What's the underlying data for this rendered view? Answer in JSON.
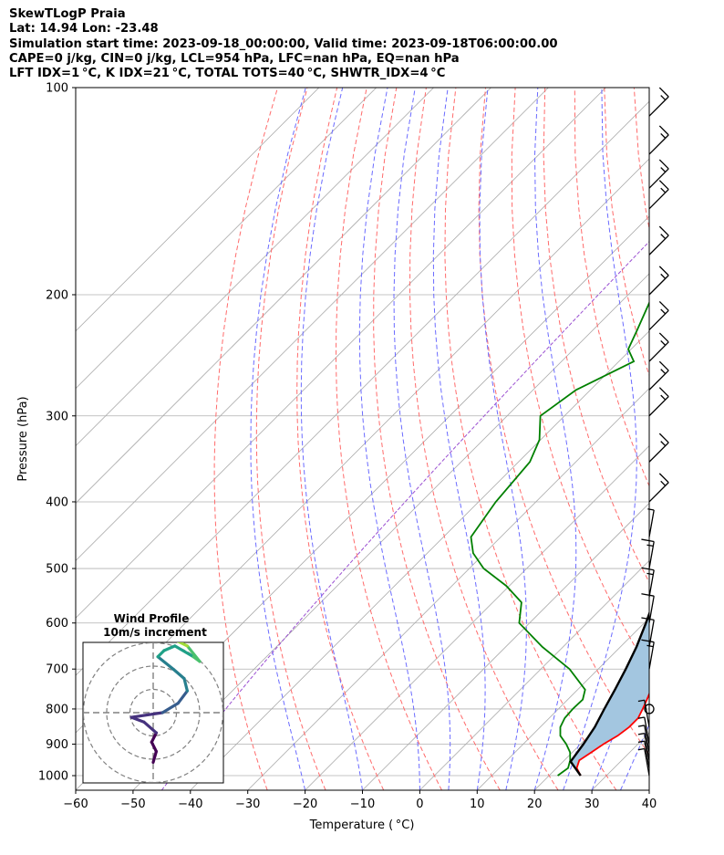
{
  "header": {
    "line1": "SkewTLogP Praia",
    "line2": "Lat: 14.94   Lon: -23.48",
    "line3": "Simulation start time: 2023-09-18_00:00:00, Valid time: 2023-09-18T06:00:00.00",
    "line4": "CAPE=0 j/kg, CIN=0 j/kg, LCL=954 hPa, LFC=nan hPa, EQ=nan hPa",
    "line5": "LFT IDX=1 °C, K IDX=21 °C, TOTAL TOTS=40 °C, SHWTR_IDX=4 °C"
  },
  "chart_data": {
    "type": "line",
    "subtype": "skew-t log-p",
    "xlabel": "Temperature ( °C)",
    "ylabel": "Pressure (hPa)",
    "xlim": [
      -60,
      40
    ],
    "ylim_hpa": [
      1050,
      100
    ],
    "y_scale": "log",
    "x_ticks": [
      "−60",
      "−50",
      "−40",
      "−30",
      "−20",
      "−10",
      "0",
      "10",
      "20",
      "30",
      "40"
    ],
    "y_ticks": [
      "100",
      "200",
      "300",
      "400",
      "500",
      "600",
      "700",
      "800",
      "900",
      "1000"
    ],
    "grid": true,
    "colors": {
      "temperature": "#ff0000",
      "dewpoint": "#008000",
      "parcel": "#000000",
      "shading": "#a3c6e0",
      "dry_adiabats": "#ff6b6b",
      "moist_adiabats": "#6b6bff",
      "mixing_ratio": "#9a4fd1",
      "isotherms": "#aaaaaa"
    },
    "series": [
      {
        "role": "temperature",
        "points": [
          [
            1000,
            25.5
          ],
          [
            975,
            23.5
          ],
          [
            950,
            22.6
          ],
          [
            925,
            23.3
          ],
          [
            900,
            24.0
          ],
          [
            875,
            25.0
          ],
          [
            850,
            25.5
          ],
          [
            825,
            25.5
          ],
          [
            800,
            24.7
          ],
          [
            775,
            23.8
          ],
          [
            750,
            22.8
          ],
          [
            700,
            20.4
          ],
          [
            650,
            18.6
          ],
          [
            600,
            16.2
          ],
          [
            550,
            13.4
          ],
          [
            500,
            10.5
          ],
          [
            450,
            6.9
          ],
          [
            400,
            2.7
          ],
          [
            350,
            -3.2
          ],
          [
            300,
            -9.6
          ],
          [
            275,
            -14.5
          ],
          [
            250,
            -17.4
          ],
          [
            225,
            -22.4
          ],
          [
            200,
            -28.7
          ],
          [
            175,
            -36.0
          ],
          [
            150,
            -44.0
          ],
          [
            140,
            -48.0
          ],
          [
            125,
            -54.3
          ],
          [
            110,
            -58.0
          ],
          [
            100,
            -60.5
          ]
        ]
      },
      {
        "role": "dewpoint",
        "points": [
          [
            1000,
            21.5
          ],
          [
            975,
            22.0
          ],
          [
            950,
            21.0
          ],
          [
            925,
            19.6
          ],
          [
            900,
            17.5
          ],
          [
            875,
            15.0
          ],
          [
            850,
            13.5
          ],
          [
            825,
            12.7
          ],
          [
            800,
            12.5
          ],
          [
            775,
            12.6
          ],
          [
            750,
            11.3
          ],
          [
            700,
            5.0
          ],
          [
            650,
            -3.6
          ],
          [
            600,
            -11.8
          ],
          [
            560,
            -15.0
          ],
          [
            530,
            -20.5
          ],
          [
            500,
            -27.5
          ],
          [
            475,
            -32.0
          ],
          [
            450,
            -35.2
          ],
          [
            400,
            -37.0
          ],
          [
            350,
            -38.0
          ],
          [
            325,
            -40.2
          ],
          [
            300,
            -44.2
          ],
          [
            275,
            -42.5
          ],
          [
            250,
            -37.4
          ],
          [
            240,
            -40.5
          ],
          [
            225,
            -42.3
          ],
          [
            200,
            -45.7
          ],
          [
            175,
            -52.0
          ],
          [
            150,
            -60.0
          ],
          [
            125,
            -66.0
          ],
          [
            110,
            -69.0
          ],
          [
            100,
            -71.0
          ]
        ]
      },
      {
        "role": "parcel",
        "points": [
          [
            1000,
            25.5
          ],
          [
            954,
            21.3
          ],
          [
            900,
            20.5
          ],
          [
            850,
            19.5
          ],
          [
            800,
            18.0
          ],
          [
            750,
            16.5
          ],
          [
            700,
            14.8
          ],
          [
            650,
            12.8
          ],
          [
            600,
            10.3
          ],
          [
            550,
            7.4
          ],
          [
            500,
            3.9
          ],
          [
            450,
            -0.2
          ],
          [
            400,
            -5.5
          ],
          [
            350,
            -12.2
          ],
          [
            300,
            -20.0
          ],
          [
            250,
            -30.0
          ],
          [
            200,
            -42.0
          ],
          [
            150,
            -57.0
          ],
          [
            125,
            -65.0
          ],
          [
            100,
            -74.0
          ]
        ]
      }
    ],
    "wind_barbs": [
      {
        "p": 1000,
        "speed_kt": 7
      },
      {
        "p": 975,
        "speed_kt": 7
      },
      {
        "p": 950,
        "speed_kt": 7
      },
      {
        "p": 925,
        "speed_kt": 7
      },
      {
        "p": 900,
        "speed_kt": 7
      },
      {
        "p": 850,
        "speed_kt": 7
      },
      {
        "p": 800,
        "speed_kt": 0
      },
      {
        "p": 700,
        "speed_kt": 17
      },
      {
        "p": 650,
        "speed_kt": 12
      },
      {
        "p": 600,
        "speed_kt": 12
      },
      {
        "p": 550,
        "speed_kt": 15
      },
      {
        "p": 500,
        "speed_kt": 15
      },
      {
        "p": 450,
        "speed_kt": 5
      },
      {
        "p": 400,
        "speed_kt": 15
      },
      {
        "p": 350,
        "speed_kt": 15
      },
      {
        "p": 300,
        "speed_kt": 15
      },
      {
        "p": 275,
        "speed_kt": 15
      },
      {
        "p": 250,
        "speed_kt": 15
      },
      {
        "p": 225,
        "speed_kt": 15
      },
      {
        "p": 200,
        "speed_kt": 15
      },
      {
        "p": 175,
        "speed_kt": 15
      },
      {
        "p": 150,
        "speed_kt": 15
      },
      {
        "p": 140,
        "speed_kt": 15
      },
      {
        "p": 125,
        "speed_kt": 15
      },
      {
        "p": 110,
        "speed_kt": 15
      }
    ],
    "hodograph": {
      "title": "Wind Profile",
      "subtitle": "10m/s increment",
      "rings": 3,
      "points": [
        [
          0.0,
          -3.2
        ],
        [
          0.2,
          -2.5
        ],
        [
          -0.1,
          -1.9
        ],
        [
          0.2,
          -1.3
        ],
        [
          -0.6,
          -0.6
        ],
        [
          -1.4,
          -0.3
        ],
        [
          0.6,
          0.0
        ],
        [
          1.6,
          0.6
        ],
        [
          2.2,
          1.4
        ],
        [
          2.0,
          2.2
        ],
        [
          1.3,
          2.8
        ],
        [
          0.3,
          3.6
        ],
        [
          0.7,
          4.0
        ],
        [
          1.4,
          4.3
        ],
        [
          2.6,
          3.6
        ],
        [
          3.0,
          3.3
        ],
        [
          2.2,
          4.3
        ],
        [
          1.6,
          4.6
        ],
        [
          2.1,
          4.9
        ],
        [
          1.6,
          5.3
        ],
        [
          1.2,
          5.0
        ],
        [
          1.7,
          6.0
        ]
      ]
    }
  }
}
